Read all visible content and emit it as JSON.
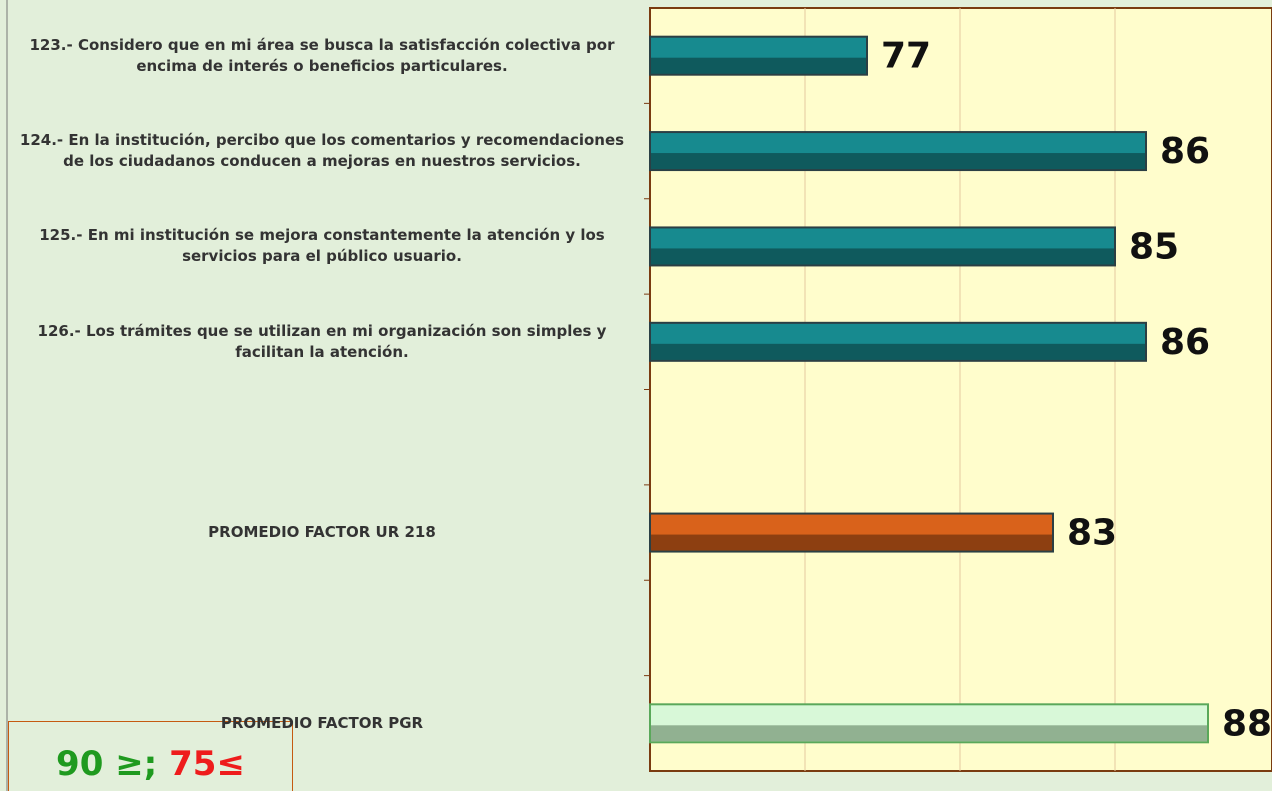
{
  "chart_data": {
    "type": "bar",
    "orientation": "horizontal",
    "categories": [
      "123.- Considero que en mi área se busca la satisfacción colectiva por encima de interés o beneficios particulares.",
      "124.- En la institución, percibo que los comentarios y recomendaciones de los ciudadanos conducen a mejoras en nuestros servicios.",
      "125.- En mi institución se mejora constantemente la atención y los servicios para el público usuario.",
      "126.- Los trámites que se utilizan en mi organización son simples y facilitan la atención.",
      null,
      "PROMEDIO FACTOR UR 218",
      null,
      "PROMEDIO FACTOR PGR"
    ],
    "values": [
      77,
      86,
      85,
      86,
      null,
      83,
      null,
      88
    ],
    "colors": [
      "#178a8f",
      "#178a8f",
      "#178a8f",
      "#178a8f",
      null,
      "#d9621b",
      null,
      "#d8f8d8"
    ],
    "xlim": [
      70,
      90
    ],
    "xticks": [
      70,
      75,
      80,
      85,
      90
    ],
    "grid": true,
    "legend_note": {
      "high": "90 ≥;",
      "low": "75≤"
    }
  }
}
